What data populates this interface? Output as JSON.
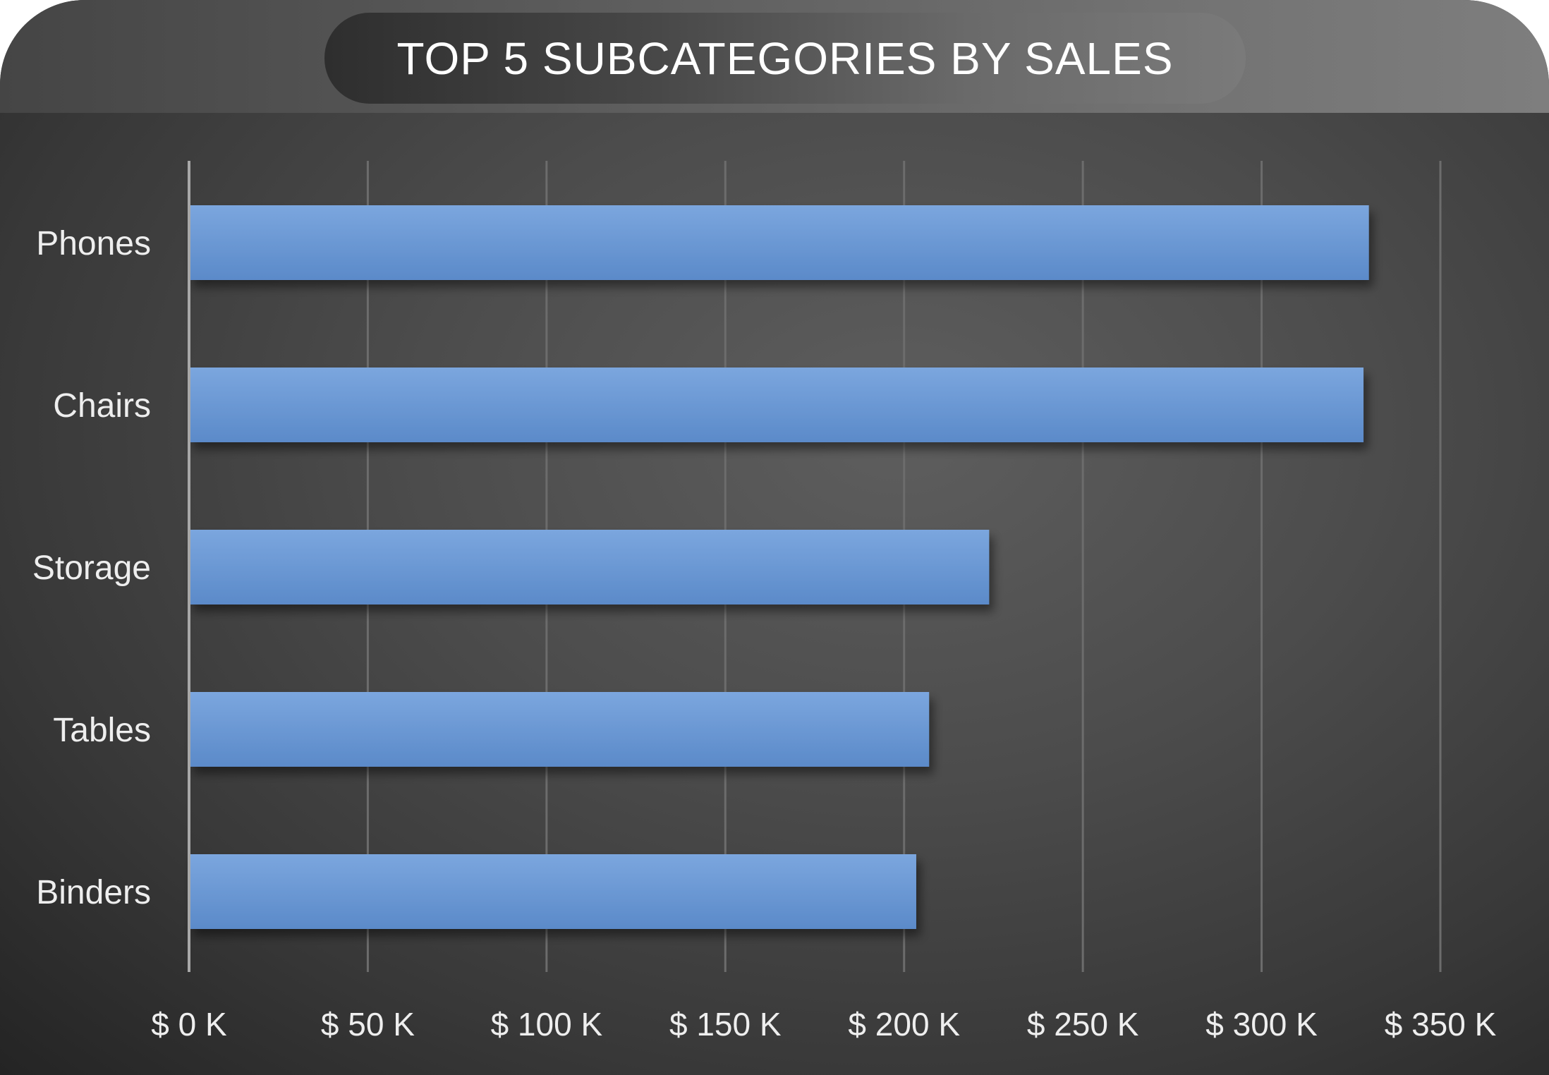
{
  "chart_data": {
    "type": "bar",
    "orientation": "horizontal",
    "title": "TOP 5 SUBCATEGORIES BY SALES",
    "categories": [
      "Phones",
      "Chairs",
      "Storage",
      "Tables",
      "Binders"
    ],
    "values": [
      330000,
      328500,
      223800,
      207000,
      203400
    ],
    "xlim": [
      0,
      350000
    ],
    "x_ticks": [
      0,
      50000,
      100000,
      150000,
      200000,
      250000,
      300000,
      350000
    ],
    "x_tick_labels": [
      "$ 0 K",
      "$ 50 K",
      "$ 100 K",
      "$ 150 K",
      "$ 200 K",
      "$ 250 K",
      "$ 300 K",
      "$ 350 K"
    ],
    "xlabel": "",
    "ylabel": "",
    "grid": "vertical",
    "legend": "none",
    "colors": {
      "bar_top": "#7ba6de",
      "bar_bottom": "#5b8ac9",
      "gridline": "#6c6c6c",
      "axis": "#a8a8a8",
      "text": "#eeeeee"
    }
  }
}
